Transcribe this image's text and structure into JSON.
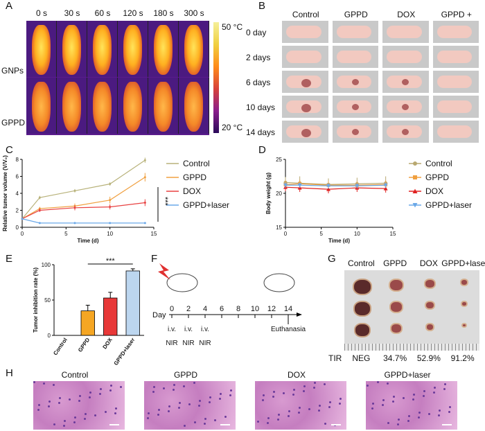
{
  "panels": {
    "a": "A",
    "b": "B",
    "c": "C",
    "d": "D",
    "e": "E",
    "f": "F",
    "g": "G",
    "h": "H"
  },
  "thermal": {
    "times": [
      "0 s",
      "30 s",
      "60 s",
      "120 s",
      "180 s",
      "300 s"
    ],
    "rows": [
      "GNPs",
      "GPPD"
    ],
    "scale_max": "50 °C",
    "scale_min": "20 °C",
    "colors": {
      "bg": "#5a1c8c",
      "hot": "#f5c400",
      "warm": "#ff7a1a",
      "mid": "#d8423a"
    }
  },
  "photos": {
    "groups": [
      "Control",
      "GPPD",
      "DOX",
      "GPPD + laser"
    ],
    "days": [
      "0 day",
      "2 days",
      "6 days",
      "10 days",
      "14 days"
    ]
  },
  "chart_data": [
    {
      "type": "line",
      "id": "C",
      "xlabel": "Time (d)",
      "ylabel": "Relative tumor volume (V/V₀)",
      "xlim": [
        0,
        15
      ],
      "ylim": [
        0,
        8
      ],
      "xticks": [
        0,
        5,
        10,
        15
      ],
      "yticks": [
        0,
        2,
        4,
        6,
        8
      ],
      "x": [
        0,
        2,
        6,
        10,
        14
      ],
      "series": [
        {
          "name": "Control",
          "color": "#b8b27a",
          "values": [
            1,
            3.5,
            4.3,
            5.1,
            7.9
          ],
          "err": [
            0,
            0.2,
            0.2,
            0.2,
            0.3
          ]
        },
        {
          "name": "GPPD",
          "color": "#f0a040",
          "values": [
            1,
            2.2,
            2.5,
            3.2,
            5.9
          ],
          "err": [
            0,
            0.2,
            0.3,
            0.4,
            0.5
          ]
        },
        {
          "name": "DOX",
          "color": "#e84040",
          "values": [
            1,
            2.0,
            2.3,
            2.4,
            2.9
          ],
          "err": [
            0,
            0.2,
            0.3,
            0.3,
            0.4
          ]
        },
        {
          "name": "GPPD+laser",
          "color": "#6aa8e8",
          "values": [
            1,
            0.5,
            0.5,
            0.5,
            0.5
          ],
          "err": [
            0,
            0,
            0,
            0,
            0
          ]
        }
      ],
      "annotation": "***"
    },
    {
      "type": "line",
      "id": "D",
      "xlabel": "Time (d)",
      "ylabel": "Body weight (g)",
      "xlim": [
        0,
        15
      ],
      "ylim": [
        15,
        25
      ],
      "xticks": [
        0,
        5,
        10,
        15
      ],
      "yticks": [
        15,
        20,
        25
      ],
      "x": [
        0,
        2,
        6,
        10,
        14
      ],
      "series": [
        {
          "name": "Control",
          "color": "#b8a870",
          "marker": "circle",
          "values": [
            21.6,
            21.5,
            21.3,
            21.4,
            21.5
          ],
          "err": [
            0.8,
            1.0,
            0.9,
            0.9,
            1.0
          ]
        },
        {
          "name": "GPPD",
          "color": "#f0a040",
          "marker": "square",
          "values": [
            21.3,
            21.4,
            21.2,
            21.2,
            21.3
          ],
          "err": [
            0.6,
            0.6,
            0.6,
            0.6,
            0.6
          ]
        },
        {
          "name": "DOX",
          "color": "#e02020",
          "marker": "triangle",
          "values": [
            20.9,
            20.8,
            20.6,
            20.8,
            20.7
          ],
          "err": [
            0.6,
            0.6,
            0.6,
            0.6,
            0.6
          ]
        },
        {
          "name": "GPPD+laser",
          "color": "#6aa8e8",
          "marker": "tri-down",
          "values": [
            21.2,
            21.2,
            21.1,
            21.1,
            21.2
          ],
          "err": [
            0.4,
            0.4,
            0.4,
            0.4,
            0.4
          ]
        }
      ]
    },
    {
      "type": "bar",
      "id": "E",
      "ylabel": "Tumor inhibition rate (%)",
      "ylim": [
        0,
        100
      ],
      "yticks": [
        0,
        50,
        100
      ],
      "categories": [
        "Control",
        "GPPD",
        "DOX",
        "GPPD+laser"
      ],
      "values": [
        0,
        34.7,
        52.9,
        91.2
      ],
      "err": [
        0,
        8,
        8,
        3
      ],
      "colors": [
        "#f5a623",
        "#f5a623",
        "#e83838",
        "#bcd6ef"
      ],
      "annotation": "***"
    }
  ],
  "schedule": {
    "day_label": "Day",
    "days": [
      "0",
      "2",
      "4",
      "6",
      "8",
      "10",
      "12",
      "14"
    ],
    "iv": "i.v.",
    "nir": "NIR",
    "end": "Euthanasia"
  },
  "tumors": {
    "groups": [
      "Control",
      "GPPD",
      "DOX",
      "GPPD+laser"
    ],
    "tir_label": "TIR",
    "tir": [
      "NEG",
      "34.7%",
      "52.9%",
      "91.2%"
    ]
  },
  "histo": {
    "groups": [
      "Control",
      "GPPD",
      "DOX",
      "GPPD+laser"
    ]
  }
}
